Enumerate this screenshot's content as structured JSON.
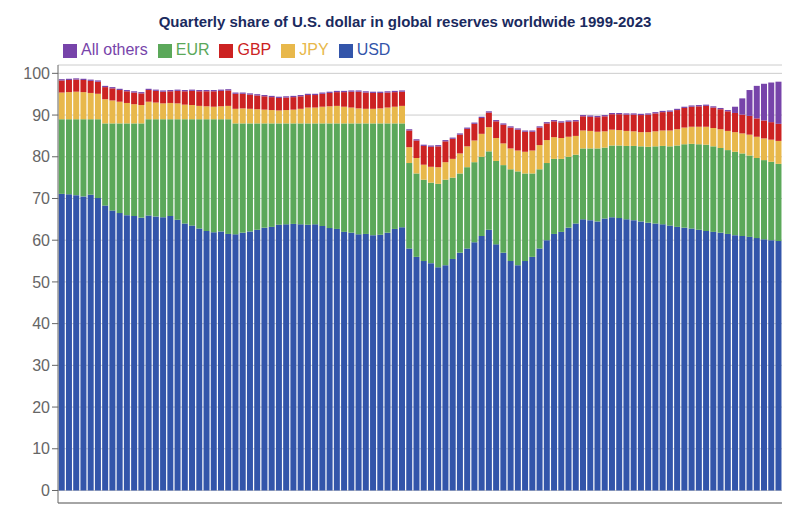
{
  "chart_data": {
    "type": "bar",
    "title": "Quarterly share of U.S. dollar in global reserves worldwide 1999-2023",
    "stacked": true,
    "grid": true,
    "legend": "upper left",
    "tick_labels": "y",
    "ylim": [
      -3,
      102
    ],
    "yticks": [
      0,
      10,
      20,
      30,
      40,
      50,
      60,
      70,
      80,
      90,
      100
    ],
    "categories": [
      null,
      null,
      null,
      null,
      null,
      null,
      null,
      null,
      null,
      null,
      null,
      null,
      null,
      null,
      null,
      null,
      null,
      null,
      null,
      null,
      null,
      null,
      null,
      null,
      null,
      null,
      null,
      null,
      null,
      null,
      null,
      null,
      null,
      null,
      null,
      null,
      null,
      null,
      null,
      null,
      null,
      null,
      null,
      null,
      null,
      null,
      null,
      null,
      null,
      null,
      null,
      null,
      null,
      null,
      null,
      null,
      null,
      null,
      null,
      null,
      null,
      null,
      null,
      null,
      null,
      null,
      null,
      null,
      null,
      null,
      null,
      null,
      null,
      null,
      null,
      null,
      null,
      null,
      null,
      null,
      null,
      null,
      null,
      null,
      null,
      null,
      null,
      null,
      null,
      null,
      null,
      null,
      null,
      null,
      null,
      null,
      null,
      null,
      null,
      null
    ],
    "series": [
      {
        "name": "USD",
        "color": "#3355aa",
        "values": [
          71.1,
          71.0,
          70.8,
          70.5,
          70.9,
          70.1,
          68.3,
          67.1,
          66.5,
          66.0,
          65.8,
          65.4,
          65.9,
          65.7,
          65.5,
          65.8,
          64.9,
          64.0,
          63.5,
          62.8,
          62.2,
          61.9,
          62.1,
          61.5,
          61.4,
          61.8,
          62.1,
          62.5,
          63.0,
          63.2,
          63.7,
          63.8,
          63.9,
          63.8,
          63.7,
          63.8,
          63.4,
          62.9,
          62.7,
          62.0,
          61.8,
          61.4,
          61.5,
          61.2,
          61.3,
          61.8,
          62.7,
          63.1,
          58.0,
          56.0,
          55.0,
          54.5,
          53.5,
          54.0,
          55.5,
          57.0,
          58.0,
          59.5,
          61.0,
          62.5,
          59.0,
          57.0,
          55.0,
          54.0,
          55.0,
          56.0,
          58.0,
          60.0,
          61.5,
          62.0,
          63.0,
          64.0,
          65.0,
          64.8,
          64.5,
          65.2,
          65.5,
          65.3,
          65.0,
          64.8,
          64.5,
          64.2,
          64.0,
          63.8,
          63.5,
          63.2,
          63.0,
          62.8,
          62.5,
          62.2,
          62.0,
          61.8,
          61.5,
          61.2,
          61.0,
          60.8,
          60.5,
          60.2,
          60.0,
          59.8
        ]
      },
      {
        "name": "EUR",
        "color": "#5ba85a",
        "values": [
          17.9,
          18.0,
          18.2,
          18.5,
          18.1,
          18.9,
          19.7,
          20.9,
          21.5,
          22.0,
          22.2,
          22.6,
          23.1,
          23.3,
          23.5,
          23.2,
          24.1,
          25.0,
          25.5,
          26.2,
          26.8,
          27.1,
          26.9,
          27.5,
          26.6,
          26.2,
          25.9,
          25.5,
          25.0,
          24.8,
          24.3,
          24.2,
          24.1,
          24.2,
          24.3,
          24.2,
          24.6,
          25.1,
          25.3,
          26.0,
          26.2,
          26.6,
          26.5,
          26.8,
          26.7,
          26.2,
          25.3,
          24.9,
          20.5,
          20.0,
          19.5,
          19.3,
          20.0,
          20.5,
          19.5,
          19.0,
          19.5,
          19.2,
          19.0,
          18.8,
          20.0,
          21.0,
          22.0,
          22.5,
          21.0,
          20.0,
          19.0,
          18.5,
          18.0,
          17.5,
          17.0,
          16.5,
          17.0,
          17.2,
          17.5,
          17.0,
          17.2,
          17.4,
          17.6,
          17.8,
          18.0,
          18.2,
          18.5,
          18.8,
          19.0,
          19.5,
          20.0,
          20.3,
          20.5,
          20.7,
          20.5,
          20.3,
          20.1,
          20.0,
          19.8,
          19.5,
          19.2,
          19.0,
          18.8,
          18.5
        ]
      },
      {
        "name": "JPY",
        "color": "#e8b84b",
        "values": [
          6.4,
          6.5,
          6.6,
          6.5,
          6.3,
          6.1,
          5.8,
          5.5,
          5.2,
          4.9,
          4.6,
          4.4,
          4.2,
          4.0,
          3.8,
          3.9,
          3.8,
          3.5,
          3.4,
          3.2,
          3.1,
          3.0,
          3.1,
          3.2,
          3.5,
          3.6,
          3.5,
          3.4,
          3.3,
          3.2,
          3.1,
          3.2,
          3.3,
          3.5,
          3.8,
          3.8,
          4.0,
          4.1,
          4.2,
          4.0,
          3.8,
          3.6,
          3.5,
          3.5,
          3.6,
          3.8,
          4.0,
          4.2,
          3.8,
          3.7,
          3.6,
          3.8,
          4.0,
          4.2,
          4.5,
          4.8,
          5.0,
          5.2,
          5.5,
          5.8,
          5.5,
          5.2,
          5.0,
          5.0,
          5.2,
          5.5,
          5.8,
          5.5,
          5.2,
          5.0,
          4.8,
          4.5,
          4.3,
          4.2,
          4.0,
          3.9,
          3.8,
          3.7,
          3.6,
          3.5,
          3.4,
          3.5,
          3.6,
          3.7,
          3.8,
          3.9,
          4.0,
          4.1,
          4.2,
          4.3,
          4.4,
          4.5,
          4.6,
          4.7,
          4.8,
          5.0,
          5.1,
          5.2,
          5.3,
          5.5
        ]
      },
      {
        "name": "GBP",
        "color": "#cc2222",
        "values": [
          2.9,
          2.9,
          2.9,
          2.9,
          2.9,
          2.9,
          2.9,
          2.9,
          2.8,
          2.8,
          2.8,
          2.8,
          2.8,
          2.8,
          2.8,
          2.8,
          3.0,
          3.2,
          3.4,
          3.5,
          3.6,
          3.7,
          3.7,
          3.7,
          3.6,
          3.5,
          3.4,
          3.3,
          3.2,
          3.1,
          3.0,
          3.0,
          3.0,
          3.0,
          3.0,
          3.0,
          3.1,
          3.2,
          3.3,
          3.5,
          3.8,
          4.0,
          3.9,
          3.8,
          3.7,
          3.6,
          3.5,
          3.4,
          4.0,
          4.2,
          4.5,
          4.8,
          5.0,
          5.0,
          4.8,
          4.5,
          4.2,
          4.0,
          3.8,
          3.5,
          4.0,
          4.5,
          5.0,
          5.0,
          4.8,
          4.5,
          4.2,
          4.0,
          3.8,
          3.7,
          3.6,
          3.5,
          3.4,
          3.4,
          3.5,
          3.6,
          3.7,
          3.8,
          3.9,
          4.0,
          4.1,
          4.2,
          4.3,
          4.4,
          4.5,
          4.6,
          4.7,
          4.8,
          4.9,
          5.0,
          4.9,
          4.8,
          4.7,
          4.6,
          4.5,
          4.5,
          4.4,
          4.3,
          4.2,
          4.1
        ]
      },
      {
        "name": "All others",
        "color": "#7744aa",
        "values": [
          0.3,
          0.3,
          0.3,
          0.3,
          0.3,
          0.3,
          0.3,
          0.3,
          0.3,
          0.3,
          0.3,
          0.3,
          0.3,
          0.3,
          0.3,
          0.3,
          0.3,
          0.3,
          0.3,
          0.3,
          0.3,
          0.3,
          0.3,
          0.3,
          0.3,
          0.3,
          0.3,
          0.3,
          0.3,
          0.3,
          0.3,
          0.3,
          0.3,
          0.3,
          0.3,
          0.3,
          0.3,
          0.3,
          0.3,
          0.3,
          0.3,
          0.3,
          0.3,
          0.3,
          0.3,
          0.3,
          0.3,
          0.3,
          0.3,
          0.3,
          0.3,
          0.3,
          0.3,
          0.3,
          0.3,
          0.3,
          0.3,
          0.3,
          0.3,
          0.3,
          0.3,
          0.3,
          0.3,
          0.3,
          0.3,
          0.3,
          0.3,
          0.3,
          0.3,
          0.3,
          0.3,
          0.3,
          0.3,
          0.3,
          0.3,
          0.3,
          0.3,
          0.3,
          0.3,
          0.3,
          0.3,
          0.3,
          0.3,
          0.3,
          0.3,
          0.3,
          0.3,
          0.3,
          0.3,
          0.3,
          0.3,
          0.3,
          0.3,
          1.5,
          3.9,
          6.2,
          7.8,
          8.8,
          9.5,
          10.1
        ]
      }
    ]
  }
}
